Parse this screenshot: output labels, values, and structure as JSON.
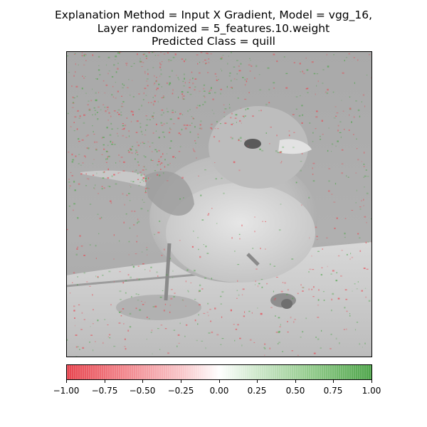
{
  "title": {
    "line1": "Explanation Method = Input X Gradient, Model = vgg_16,",
    "line2": "Layer randomized = 5_features.10.weight",
    "line3": "Predicted Class = quill"
  },
  "colorbar": {
    "min": -1.0,
    "max": 1.0,
    "ticks": [
      "−1.00",
      "−0.75",
      "−0.50",
      "−0.25",
      "0.00",
      "0.25",
      "0.50",
      "0.75",
      "1.00"
    ],
    "colors": {
      "negative": "#e8454f",
      "zero": "#ffffff",
      "positive": "#4ea54a"
    }
  },
  "image": {
    "subject": "bird-heatmap"
  }
}
